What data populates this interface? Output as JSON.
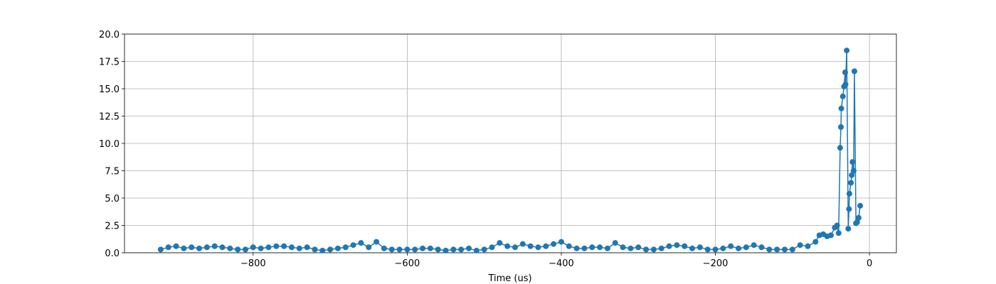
{
  "chart_data": {
    "type": "line",
    "xlabel": "Time (us)",
    "x": [
      -920,
      -910,
      -900,
      -890,
      -880,
      -870,
      -860,
      -850,
      -840,
      -830,
      -820,
      -810,
      -800,
      -790,
      -780,
      -770,
      -760,
      -750,
      -740,
      -730,
      -720,
      -710,
      -700,
      -690,
      -680,
      -670,
      -660,
      -650,
      -640,
      -630,
      -620,
      -610,
      -600,
      -590,
      -580,
      -570,
      -560,
      -550,
      -540,
      -530,
      -520,
      -510,
      -500,
      -490,
      -480,
      -470,
      -460,
      -450,
      -440,
      -430,
      -420,
      -410,
      -400,
      -390,
      -380,
      -370,
      -360,
      -350,
      -340,
      -330,
      -320,
      -310,
      -300,
      -290,
      -280,
      -270,
      -260,
      -250,
      -240,
      -230,
      -220,
      -210,
      -200,
      -190,
      -180,
      -170,
      -160,
      -150,
      -140,
      -130,
      -120,
      -110,
      -100,
      -90,
      -80,
      -70,
      -65,
      -60,
      -55,
      -50,
      -45,
      -42,
      -40,
      -38,
      -37,
      -36.5,
      -34.5,
      -33,
      -31.5,
      -31,
      -29.5,
      -27.5,
      -26.5,
      -26,
      -24,
      -23,
      -22,
      -20.5,
      -19.5,
      -17.5,
      -16,
      -14,
      -12
    ],
    "series": [
      {
        "color": "#1f77b4",
        "values": [
          0.3,
          0.5,
          0.6,
          0.4,
          0.5,
          0.4,
          0.5,
          0.6,
          0.5,
          0.4,
          0.3,
          0.3,
          0.5,
          0.4,
          0.5,
          0.6,
          0.6,
          0.5,
          0.4,
          0.5,
          0.3,
          0.2,
          0.3,
          0.4,
          0.5,
          0.7,
          0.9,
          0.5,
          1.0,
          0.4,
          0.3,
          0.3,
          0.3,
          0.3,
          0.4,
          0.4,
          0.3,
          0.2,
          0.3,
          0.3,
          0.4,
          0.2,
          0.3,
          0.5,
          0.9,
          0.6,
          0.5,
          0.8,
          0.6,
          0.5,
          0.6,
          0.8,
          1.0,
          0.6,
          0.4,
          0.4,
          0.5,
          0.5,
          0.4,
          0.9,
          0.5,
          0.4,
          0.5,
          0.3,
          0.3,
          0.4,
          0.6,
          0.7,
          0.6,
          0.4,
          0.5,
          0.3,
          0.3,
          0.4,
          0.6,
          0.4,
          0.5,
          0.7,
          0.5,
          0.3,
          0.3,
          0.3,
          0.3,
          0.7,
          0.6,
          1.0,
          1.6,
          1.7,
          1.5,
          1.6,
          2.3,
          2.5,
          1.8,
          9.6,
          11.5,
          13.2,
          14.3,
          15.2,
          16.5,
          15.4,
          18.5,
          2.2,
          4.0,
          5.4,
          6.4,
          7.1,
          8.3,
          7.5,
          16.6,
          2.7,
          2.8,
          3.2,
          4.3
        ]
      }
    ],
    "xlim": [
      -967,
      35
    ],
    "xticks": [
      {
        "value": -800,
        "label": "−800"
      },
      {
        "value": -600,
        "label": "−600"
      },
      {
        "value": -400,
        "label": "−400"
      },
      {
        "value": -200,
        "label": "−200"
      },
      0
    ],
    "ylim": [
      0,
      20
    ],
    "yticks": [
      {
        "value": 0,
        "label": "0.0"
      },
      2.5,
      {
        "value": 5,
        "label": "5.0"
      },
      7.5,
      {
        "value": 10,
        "label": "10.0"
      },
      12.5,
      {
        "value": 15,
        "label": "15.0"
      },
      17.5,
      {
        "value": 20,
        "label": "20.0"
      }
    ],
    "grid": true
  }
}
